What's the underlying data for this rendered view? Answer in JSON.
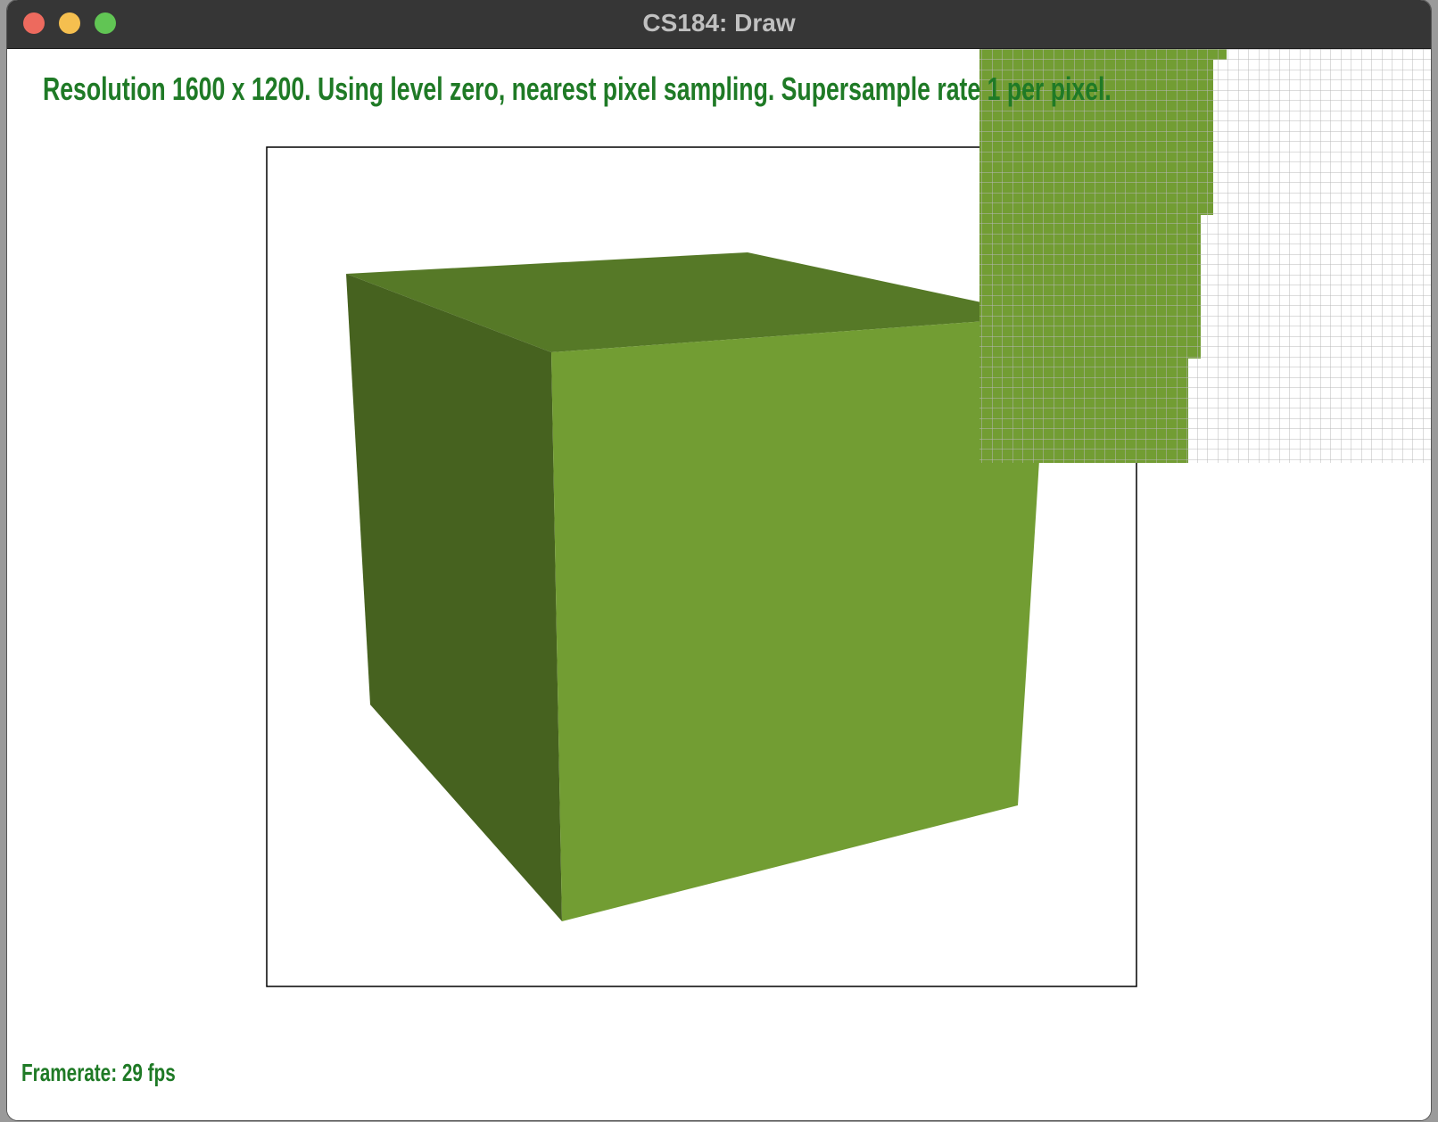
{
  "window": {
    "title": "CS184: Draw",
    "controls": {
      "close": "close-button",
      "minimize": "minimize-button",
      "zoom": "zoom-button"
    }
  },
  "hud": {
    "status_line": "Resolution 1600 x 1200. Using level zero, nearest pixel sampling. Supersample rate 1 per pixel.",
    "framerate": "Framerate: 29 fps"
  },
  "colors": {
    "text": "#1f7a26",
    "cube_front": "#729d33",
    "cube_side": "#46621f",
    "cube_top": "#567927",
    "zoom_grid_lines": "#b8b8b8",
    "canvas_border": "#000000"
  }
}
